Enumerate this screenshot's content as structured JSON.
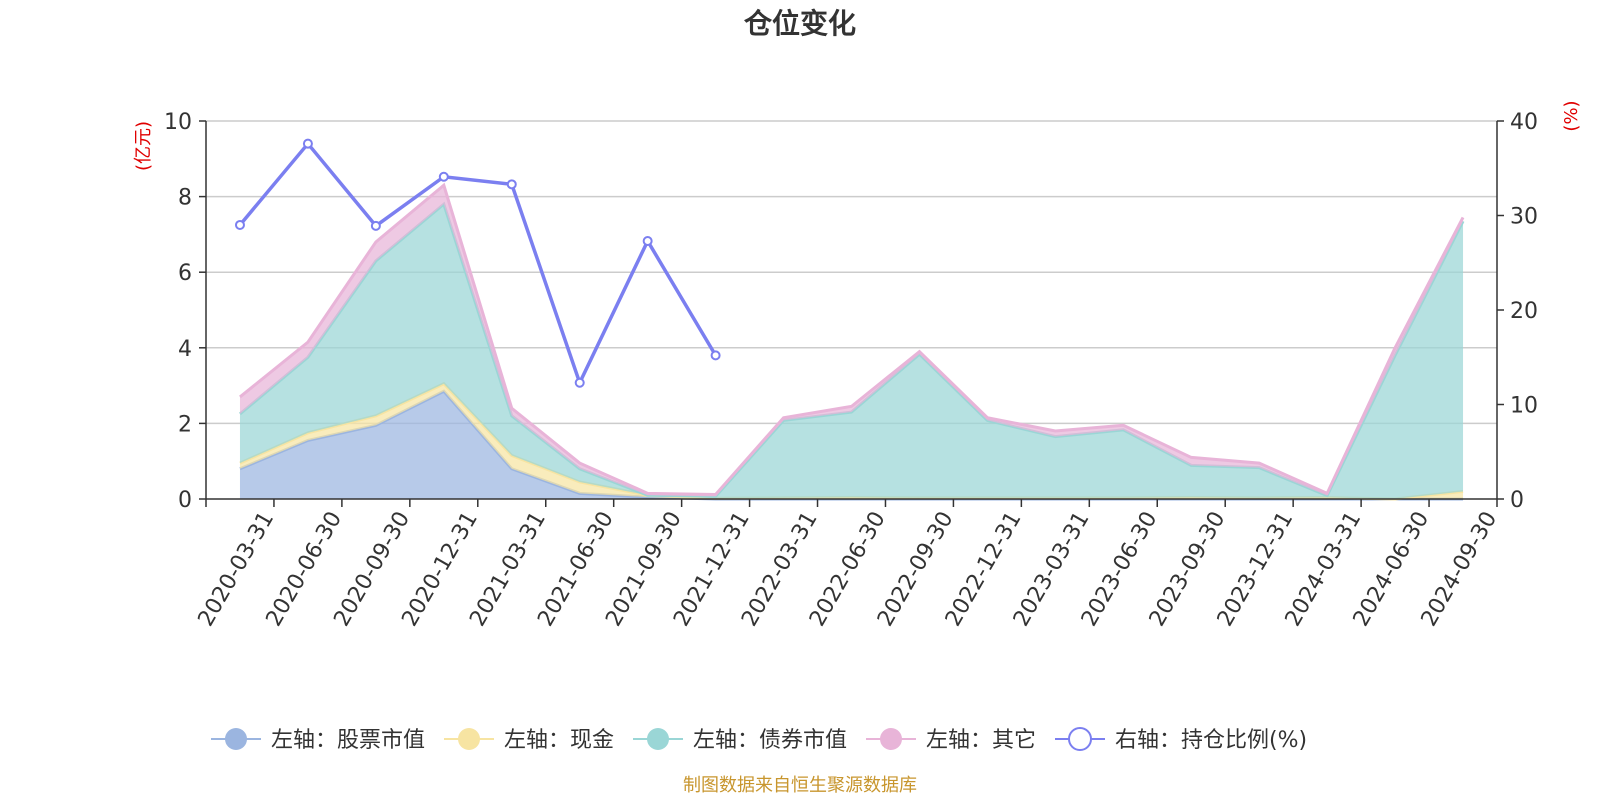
{
  "chart_data": {
    "type": "area",
    "title": "仓位变化",
    "left_axis": {
      "unit": "(亿元)",
      "ylim": [
        0,
        10
      ],
      "ticks": [
        "0",
        "2",
        "4",
        "6",
        "8",
        "10"
      ]
    },
    "right_axis": {
      "unit": "(%)",
      "ylim": [
        0,
        40
      ],
      "ticks": [
        "0",
        "10",
        "20",
        "30",
        "40"
      ]
    },
    "categories": [
      "2020-03-31",
      "2020-06-30",
      "2020-09-30",
      "2020-12-31",
      "2021-03-31",
      "2021-06-30",
      "2021-09-30",
      "2021-12-31",
      "2022-03-31",
      "2022-06-30",
      "2022-09-30",
      "2022-12-31",
      "2023-03-31",
      "2023-06-30",
      "2023-09-30",
      "2023-12-31",
      "2024-03-31",
      "2024-06-30",
      "2024-09-30"
    ],
    "stacked_series": [
      {
        "name": "左轴：股票市值",
        "axis": "left",
        "color": "#9bb5e0",
        "values": [
          0.8,
          1.55,
          1.95,
          2.85,
          0.8,
          0.15,
          0.05,
          0.0,
          0,
          0,
          0,
          0,
          0,
          0,
          0,
          0,
          0,
          0,
          0
        ]
      },
      {
        "name": "左轴：现金",
        "axis": "left",
        "color": "#f7e4a2",
        "values": [
          0.15,
          0.2,
          0.25,
          0.2,
          0.35,
          0.3,
          0.05,
          0.02,
          0.03,
          0.04,
          0.03,
          0.03,
          0.03,
          0.03,
          0.04,
          0.03,
          0.04,
          0.0,
          0.2
        ]
      },
      {
        "name": "左轴：债券市值",
        "axis": "left",
        "color": "#9ad6d6",
        "values": [
          1.3,
          2.0,
          4.1,
          4.75,
          1.05,
          0.35,
          0.0,
          0.05,
          2.05,
          2.26,
          3.8,
          2.05,
          1.62,
          1.8,
          0.85,
          0.8,
          0.05,
          3.8,
          7.15
        ]
      },
      {
        "name": "左轴：其它",
        "axis": "left",
        "color": "#e8b4d8",
        "values": [
          0.45,
          0.4,
          0.5,
          0.5,
          0.2,
          0.15,
          0.05,
          0.05,
          0.07,
          0.15,
          0.07,
          0.07,
          0.15,
          0.12,
          0.21,
          0.12,
          0.06,
          0.2,
          0.1
        ]
      }
    ],
    "line_series": {
      "name": "右轴：持仓比例(%)",
      "axis": "right",
      "color": "#7b7ff0",
      "values": [
        29.0,
        37.6,
        28.9,
        34.1,
        33.3,
        12.3,
        27.3,
        15.2,
        null,
        null,
        null,
        null,
        null,
        null,
        null,
        null,
        null,
        null,
        null
      ]
    },
    "grid": true,
    "legend_position": "bottom"
  },
  "footer": {
    "source": "制图数据来自恒生聚源数据库"
  },
  "colors": {
    "axis_unit": "#e00000",
    "footer": "#c8962e",
    "grid": "#cccccc"
  }
}
